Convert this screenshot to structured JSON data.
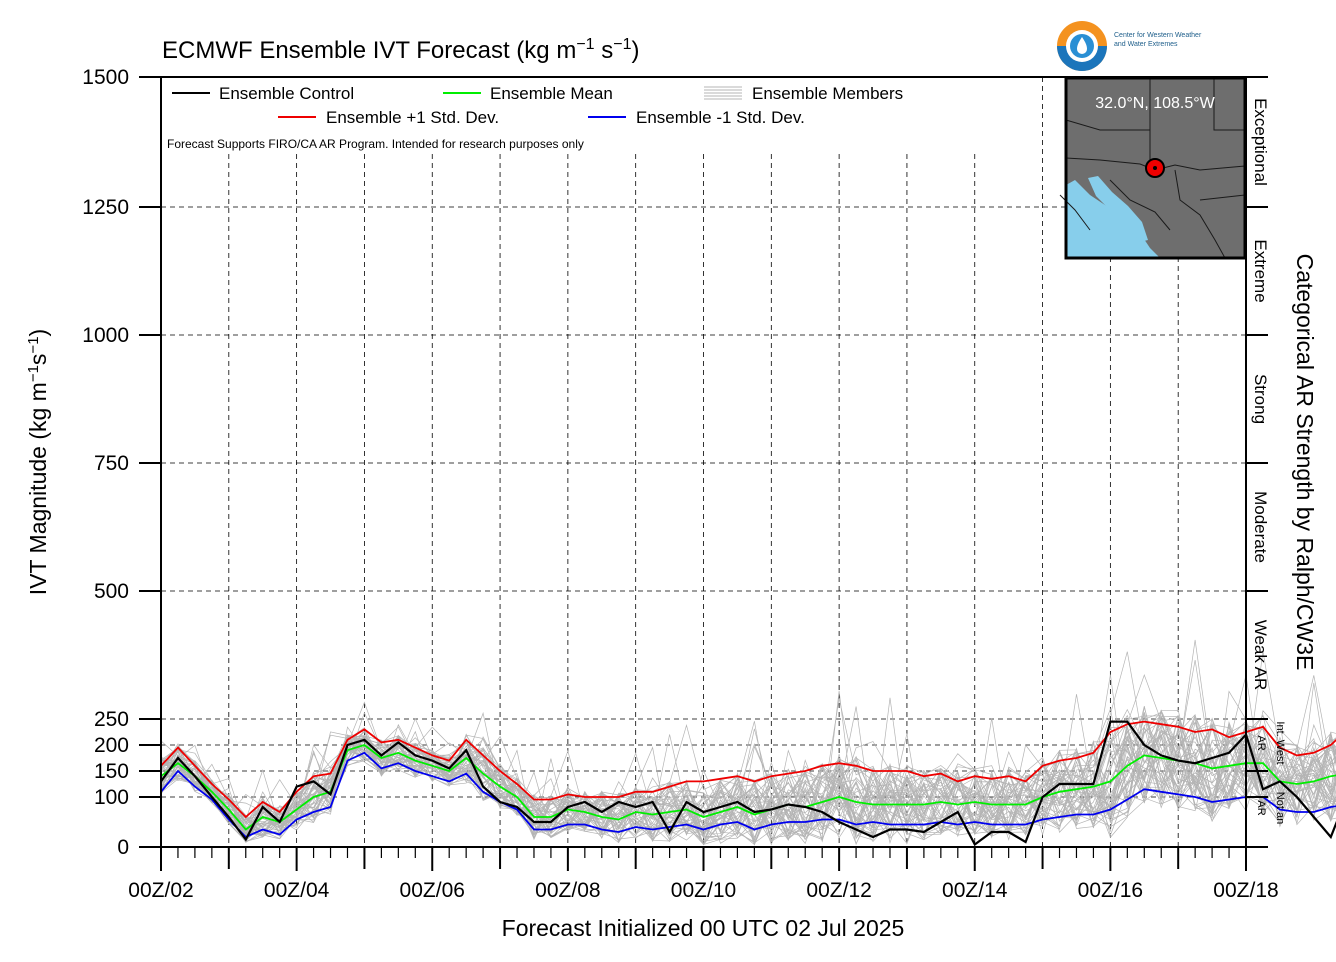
{
  "title": "ECMWF Ensemble IVT Forecast (kg m",
  "title_units": {
    "exp1": "−1",
    "mid": " s",
    "exp2": "−1",
    "close": ")"
  },
  "subtitle_note": "Forecast Supports FIRO/CA AR Program. Intended for research purposes only",
  "logo": {
    "line1": "Center for Western Weather",
    "line2": "and Water Extremes"
  },
  "map_inset": {
    "label": "32.0°N, 108.5°W",
    "water_color": "#87ceeb",
    "land_color": "#6e6e6e"
  },
  "legend": {
    "control": "Ensemble Control",
    "mean": "Ensemble Mean",
    "members": "Ensemble Members",
    "plus1": "Ensemble +1 Std. Dev.",
    "minus1": "Ensemble -1 Std. Dev."
  },
  "right_axis_label": "Categorical AR Strength by Ralph/CW3E",
  "categories": {
    "exceptional": "Exceptional",
    "extreme": "Extreme",
    "strong": "Strong",
    "moderate": "Moderate",
    "weak": "Weak AR",
    "int_west_1": "Int. West",
    "int_west_2": "AR",
    "not_ar_1": "Not an",
    "not_ar_2": "AR"
  },
  "colors": {
    "control": "#000000",
    "mean": "#00ee00",
    "plus1": "#ee0000",
    "minus1": "#0000ee",
    "members": "#b4b4b4"
  },
  "chart_data": {
    "type": "line",
    "xlabel": "Forecast Initialized 00 UTC 02 Jul 2025",
    "ylabel": "IVT Magnitude (kg m",
    "ylabel_units": {
      "exp1": "−1",
      "mid": "s",
      "exp2": "−1",
      "close": ")"
    },
    "x_tick_labels": [
      "00Z/02",
      "00Z/04",
      "00Z/06",
      "00Z/08",
      "00Z/10",
      "00Z/12",
      "00Z/14",
      "00Z/16",
      "00Z/18"
    ],
    "x_range_days": [
      0,
      16
    ],
    "x_step_hours": 6,
    "y_ticks": [
      0,
      100,
      150,
      200,
      250,
      500,
      750,
      1000,
      1250,
      1500
    ],
    "y_scale": "piecewise linear: 0-250 expanded, 250-1500 compressed",
    "grid": true,
    "legend_placement": "top-left",
    "category_bounds": [
      0,
      100,
      150,
      250,
      500,
      750,
      1000,
      1250,
      1500
    ],
    "series": [
      {
        "name": "Ensemble Control",
        "color": "#000000",
        "values": [
          130,
          175,
          140,
          100,
          60,
          15,
          80,
          50,
          120,
          130,
          105,
          200,
          210,
          180,
          205,
          180,
          170,
          155,
          190,
          120,
          90,
          80,
          50,
          50,
          80,
          90,
          70,
          90,
          80,
          90,
          30,
          90,
          70,
          80,
          90,
          70,
          75,
          85,
          80,
          70,
          50,
          35,
          20,
          35,
          35,
          30,
          50,
          70,
          5,
          30,
          30,
          10,
          100,
          125,
          125,
          125,
          245,
          245,
          200,
          180,
          170,
          165,
          175,
          185,
          220,
          115,
          130,
          100,
          60,
          20,
          105,
          90,
          70,
          80,
          70,
          65,
          75,
          155,
          95,
          25,
          30,
          100,
          125
        ]
      },
      {
        "name": "Ensemble Mean",
        "color": "#00ee00",
        "values": [
          140,
          165,
          140,
          110,
          75,
          35,
          60,
          50,
          75,
          100,
          110,
          190,
          200,
          175,
          185,
          170,
          160,
          150,
          175,
          145,
          120,
          100,
          60,
          60,
          75,
          70,
          60,
          55,
          70,
          65,
          70,
          75,
          60,
          70,
          80,
          65,
          75,
          85,
          80,
          90,
          100,
          90,
          85,
          85,
          85,
          85,
          90,
          85,
          90,
          85,
          85,
          85,
          100,
          110,
          115,
          120,
          130,
          160,
          180,
          175,
          170,
          165,
          155,
          160,
          165,
          165,
          130,
          125,
          130,
          140,
          145,
          120,
          120,
          115,
          120,
          130,
          135,
          130,
          120,
          120,
          125,
          125,
          155
        ]
      },
      {
        "name": "Ensemble +1 Std. Dev.",
        "color": "#ee0000",
        "values": [
          160,
          195,
          160,
          125,
          95,
          60,
          90,
          70,
          110,
          140,
          145,
          210,
          230,
          205,
          210,
          195,
          180,
          170,
          210,
          180,
          150,
          125,
          95,
          95,
          105,
          100,
          100,
          100,
          110,
          110,
          120,
          130,
          130,
          135,
          140,
          130,
          140,
          145,
          150,
          160,
          165,
          160,
          150,
          150,
          150,
          140,
          145,
          130,
          140,
          135,
          140,
          130,
          160,
          170,
          175,
          185,
          225,
          240,
          245,
          240,
          235,
          225,
          230,
          215,
          225,
          235,
          195,
          180,
          185,
          200,
          230,
          185,
          170,
          165,
          180,
          200,
          190,
          215,
          160,
          155,
          160,
          185,
          215
        ]
      },
      {
        "name": "Ensemble -1 Std. Dev.",
        "color": "#0000ee",
        "values": [
          110,
          150,
          120,
          95,
          55,
          20,
          35,
          25,
          55,
          70,
          80,
          170,
          185,
          155,
          165,
          150,
          140,
          130,
          145,
          110,
          90,
          75,
          35,
          35,
          45,
          45,
          35,
          30,
          40,
          35,
          40,
          45,
          35,
          45,
          50,
          35,
          45,
          50,
          50,
          55,
          55,
          45,
          50,
          45,
          45,
          45,
          50,
          45,
          50,
          45,
          45,
          45,
          55,
          60,
          65,
          65,
          75,
          95,
          115,
          110,
          105,
          100,
          90,
          95,
          100,
          100,
          75,
          70,
          70,
          80,
          85,
          75,
          75,
          70,
          70,
          80,
          85,
          75,
          80,
          75,
          75,
          80,
          95
        ]
      }
    ]
  }
}
